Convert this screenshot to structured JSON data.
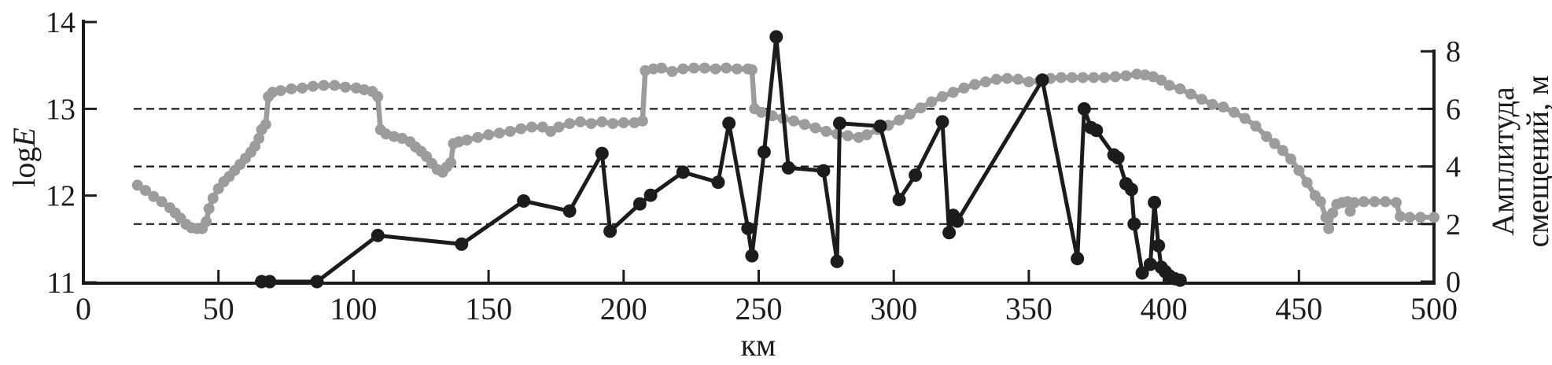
{
  "figure": {
    "description": "Dual-axis profile chart: gray curve = logE (left axis), black curve with markers = displacement amplitude in meters (right axis), versus distance in km"
  },
  "chart_data": {
    "type": "line",
    "x_axis": {
      "label": "км",
      "min": 0,
      "max": 500,
      "ticks": [
        0,
        50,
        100,
        150,
        200,
        250,
        300,
        350,
        400,
        450,
        500
      ]
    },
    "y_left": {
      "label_plain": "log",
      "label_italic": "E",
      "min": 11,
      "max": 14,
      "ticks": [
        11,
        12,
        13,
        14
      ]
    },
    "y_right": {
      "label_line1": "Амплитуда",
      "label_line2": "смещений, м",
      "min": 0,
      "max": 8,
      "ticks": [
        0,
        2,
        4,
        6,
        8
      ],
      "grid_values": [
        2,
        4,
        6
      ]
    },
    "grid": "dashed horizontal lines at right-axis values 2, 4, 6",
    "legend_position": "none",
    "series": [
      {
        "name": "logE",
        "axis": "left",
        "color": "#9c9c9c",
        "marker": "dot",
        "points": [
          [
            20,
            12.12
          ],
          [
            23,
            12.06
          ],
          [
            26,
            11.99
          ],
          [
            29,
            11.93
          ],
          [
            32,
            11.86
          ],
          [
            34,
            11.8
          ],
          [
            36,
            11.74
          ],
          [
            38,
            11.67
          ],
          [
            40,
            11.63
          ],
          [
            42,
            11.62
          ],
          [
            44,
            11.62
          ],
          [
            45.5,
            11.7
          ],
          [
            46.5,
            11.85
          ],
          [
            48,
            11.97
          ],
          [
            50,
            12.08
          ],
          [
            52,
            12.16
          ],
          [
            54,
            12.22
          ],
          [
            56,
            12.29
          ],
          [
            58,
            12.36
          ],
          [
            60,
            12.43
          ],
          [
            62,
            12.5
          ],
          [
            63.5,
            12.57
          ],
          [
            65,
            12.66
          ],
          [
            66,
            12.76
          ],
          [
            67.5,
            12.82
          ],
          [
            68.5,
            13.14
          ],
          [
            70,
            13.19
          ],
          [
            73,
            13.21
          ],
          [
            77,
            13.23
          ],
          [
            81,
            13.24
          ],
          [
            85,
            13.26
          ],
          [
            89,
            13.27
          ],
          [
            93,
            13.27
          ],
          [
            97,
            13.25
          ],
          [
            101,
            13.24
          ],
          [
            104,
            13.22
          ],
          [
            107,
            13.2
          ],
          [
            109,
            13.14
          ],
          [
            110,
            12.76
          ],
          [
            112,
            12.71
          ],
          [
            115,
            12.68
          ],
          [
            118,
            12.66
          ],
          [
            121,
            12.62
          ],
          [
            123,
            12.56
          ],
          [
            125,
            12.51
          ],
          [
            127,
            12.45
          ],
          [
            129,
            12.37
          ],
          [
            131,
            12.3
          ],
          [
            133,
            12.27
          ],
          [
            134.5,
            12.33
          ],
          [
            136,
            12.38
          ],
          [
            137,
            12.6
          ],
          [
            139,
            12.62
          ],
          [
            142,
            12.64
          ],
          [
            146,
            12.67
          ],
          [
            150,
            12.7
          ],
          [
            154,
            12.72
          ],
          [
            158,
            12.74
          ],
          [
            162,
            12.77
          ],
          [
            166,
            12.79
          ],
          [
            170,
            12.79
          ],
          [
            173,
            12.74
          ],
          [
            176,
            12.79
          ],
          [
            180,
            12.83
          ],
          [
            184,
            12.85
          ],
          [
            188,
            12.83
          ],
          [
            192,
            12.85
          ],
          [
            196,
            12.83
          ],
          [
            200,
            12.84
          ],
          [
            204,
            12.84
          ],
          [
            207,
            12.86
          ],
          [
            208,
            13.44
          ],
          [
            211,
            13.46
          ],
          [
            214,
            13.47
          ],
          [
            218,
            13.43
          ],
          [
            222,
            13.46
          ],
          [
            226,
            13.47
          ],
          [
            230,
            13.47
          ],
          [
            234,
            13.46
          ],
          [
            238,
            13.47
          ],
          [
            242,
            13.46
          ],
          [
            246,
            13.46
          ],
          [
            247.5,
            13.45
          ],
          [
            248.5,
            13.0
          ],
          [
            251,
            12.96
          ],
          [
            255,
            12.92
          ],
          [
            259,
            12.89
          ],
          [
            263,
            12.86
          ],
          [
            267,
            12.82
          ],
          [
            271,
            12.78
          ],
          [
            275,
            12.74
          ],
          [
            279,
            12.71
          ],
          [
            283,
            12.69
          ],
          [
            287,
            12.67
          ],
          [
            290,
            12.7
          ],
          [
            294,
            12.76
          ],
          [
            298,
            12.81
          ],
          [
            302,
            12.87
          ],
          [
            306,
            12.94
          ],
          [
            310,
            13.01
          ],
          [
            314,
            13.08
          ],
          [
            318,
            13.14
          ],
          [
            322,
            13.19
          ],
          [
            326,
            13.24
          ],
          [
            330,
            13.28
          ],
          [
            334,
            13.31
          ],
          [
            338,
            13.34
          ],
          [
            342,
            13.35
          ],
          [
            346,
            13.34
          ],
          [
            350,
            13.31
          ],
          [
            354,
            13.32
          ],
          [
            358,
            13.35
          ],
          [
            362,
            13.36
          ],
          [
            366,
            13.36
          ],
          [
            370,
            13.36
          ],
          [
            374,
            13.36
          ],
          [
            378,
            13.36
          ],
          [
            382,
            13.37
          ],
          [
            386,
            13.38
          ],
          [
            390,
            13.4
          ],
          [
            393,
            13.39
          ],
          [
            396,
            13.37
          ],
          [
            399,
            13.33
          ],
          [
            402,
            13.27
          ],
          [
            406,
            13.23
          ],
          [
            410,
            13.17
          ],
          [
            414,
            13.11
          ],
          [
            418,
            13.05
          ],
          [
            422,
            13.02
          ],
          [
            426,
            12.96
          ],
          [
            430,
            12.89
          ],
          [
            434,
            12.8
          ],
          [
            438,
            12.68
          ],
          [
            441,
            12.6
          ],
          [
            444,
            12.52
          ],
          [
            447,
            12.42
          ],
          [
            450,
            12.29
          ],
          [
            453,
            12.15
          ],
          [
            456,
            12.0
          ],
          [
            458,
            11.93
          ],
          [
            460,
            11.75
          ],
          [
            461,
            11.62
          ],
          [
            462.5,
            11.8
          ],
          [
            464,
            11.9
          ],
          [
            466,
            11.92
          ],
          [
            468,
            11.93
          ],
          [
            469,
            11.82
          ],
          [
            470.5,
            11.92
          ],
          [
            474,
            11.93
          ],
          [
            478,
            11.93
          ],
          [
            482,
            11.93
          ],
          [
            486,
            11.92
          ],
          [
            487.5,
            11.76
          ],
          [
            491,
            11.75
          ],
          [
            495,
            11.75
          ],
          [
            500,
            11.75
          ]
        ]
      },
      {
        "name": "Амплитуда смещений",
        "axis": "right",
        "color": "#1c1c1c",
        "marker": "dot",
        "points": [
          [
            66,
            0
          ],
          [
            69,
            0
          ],
          [
            86.5,
            0
          ],
          [
            109,
            1.6
          ],
          [
            140,
            1.3
          ],
          [
            163,
            2.8
          ],
          [
            180,
            2.45
          ],
          [
            192,
            4.45
          ],
          [
            195,
            1.75
          ],
          [
            206,
            2.7
          ],
          [
            210,
            3.0
          ],
          [
            222,
            3.8
          ],
          [
            235,
            3.45
          ],
          [
            239,
            5.5
          ],
          [
            246,
            1.85
          ],
          [
            247.5,
            0.9
          ],
          [
            252,
            4.5
          ],
          [
            256.5,
            8.5
          ],
          [
            261,
            3.95
          ],
          [
            274,
            3.85
          ],
          [
            279,
            0.7
          ],
          [
            280,
            5.5
          ],
          [
            295,
            5.4
          ],
          [
            302,
            2.85
          ],
          [
            308,
            3.7
          ],
          [
            318,
            5.55
          ],
          [
            320.5,
            1.7
          ],
          [
            322,
            2.3
          ],
          [
            323.5,
            2.1
          ],
          [
            355,
            7.0
          ],
          [
            368,
            0.8
          ],
          [
            370.5,
            6.0
          ],
          [
            373,
            5.35
          ],
          [
            375,
            5.25
          ],
          [
            381.5,
            4.4
          ],
          [
            383,
            4.3
          ],
          [
            386,
            3.4
          ],
          [
            388,
            3.2
          ],
          [
            389,
            2.0
          ],
          [
            392,
            0.3
          ],
          [
            395,
            0.6
          ],
          [
            396.5,
            2.75
          ],
          [
            398,
            1.25
          ],
          [
            399,
            0.5
          ],
          [
            400.5,
            0.35
          ],
          [
            402,
            0.2
          ],
          [
            404,
            0.1
          ],
          [
            406,
            0.05
          ]
        ]
      }
    ],
    "colors": {
      "gray_series": "#9c9c9c",
      "black_series": "#1c1c1c",
      "axis": "#1c1c1c",
      "background": "#ffffff"
    }
  }
}
